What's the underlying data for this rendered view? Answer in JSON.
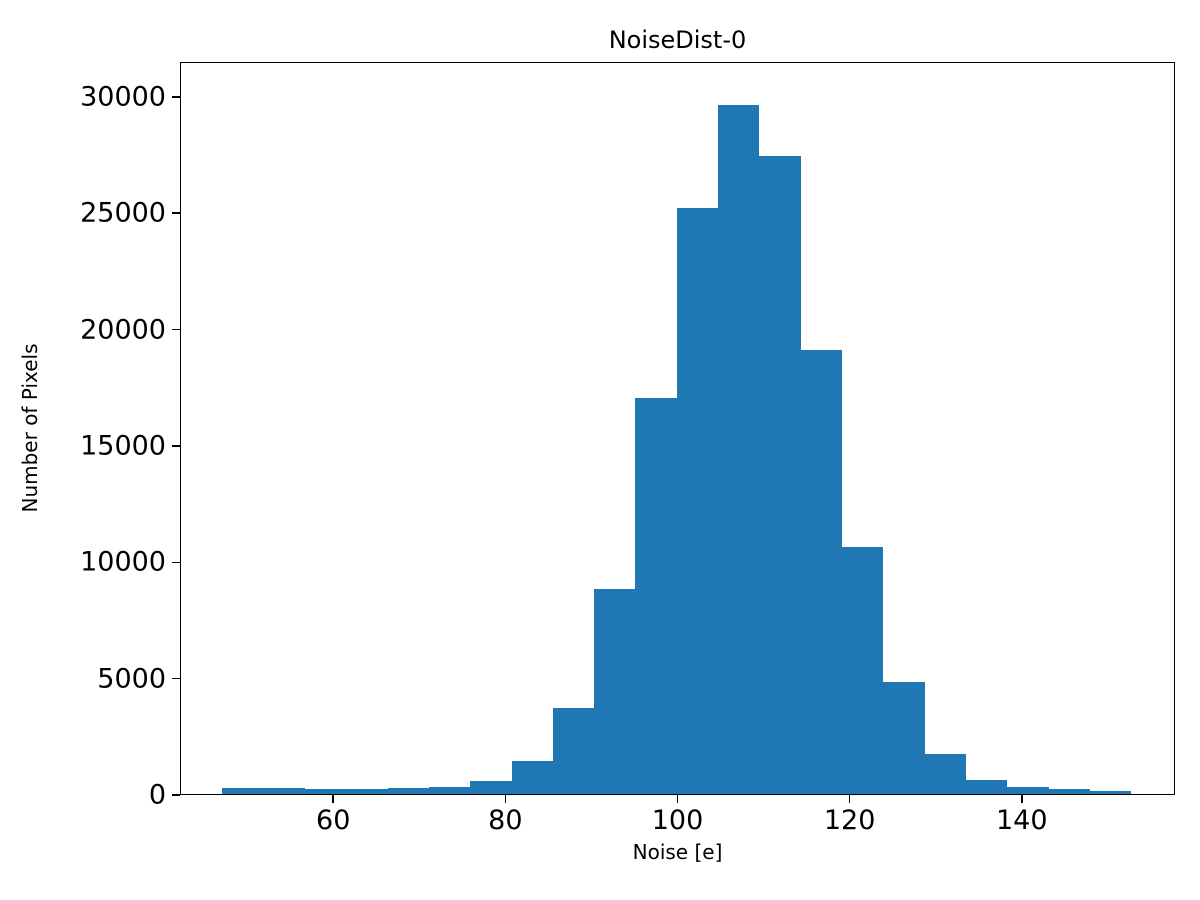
{
  "figure": {
    "background_color": "#ffffff",
    "axis_color": "#000000"
  },
  "chart_data": {
    "type": "bar",
    "subtype": "histogram",
    "title": "NoiseDist-0",
    "xlabel": "Noise [e]",
    "ylabel": "Number of Pixels",
    "bar_color": "#1f77b4",
    "grid": false,
    "legend": null,
    "bin_start": 47.0,
    "bin_width": 4.8,
    "counts": [
      250,
      250,
      230,
      230,
      250,
      300,
      550,
      1400,
      3700,
      8800,
      17000,
      25200,
      29600,
      27400,
      19100,
      10600,
      4800,
      1700,
      600,
      300,
      200,
      150
    ],
    "xlim": [
      42.2,
      157.8
    ],
    "ylim": [
      0,
      31500
    ],
    "xticks": [
      60,
      80,
      100,
      120,
      140
    ],
    "yticks": [
      0,
      5000,
      10000,
      15000,
      20000,
      25000,
      30000
    ]
  }
}
